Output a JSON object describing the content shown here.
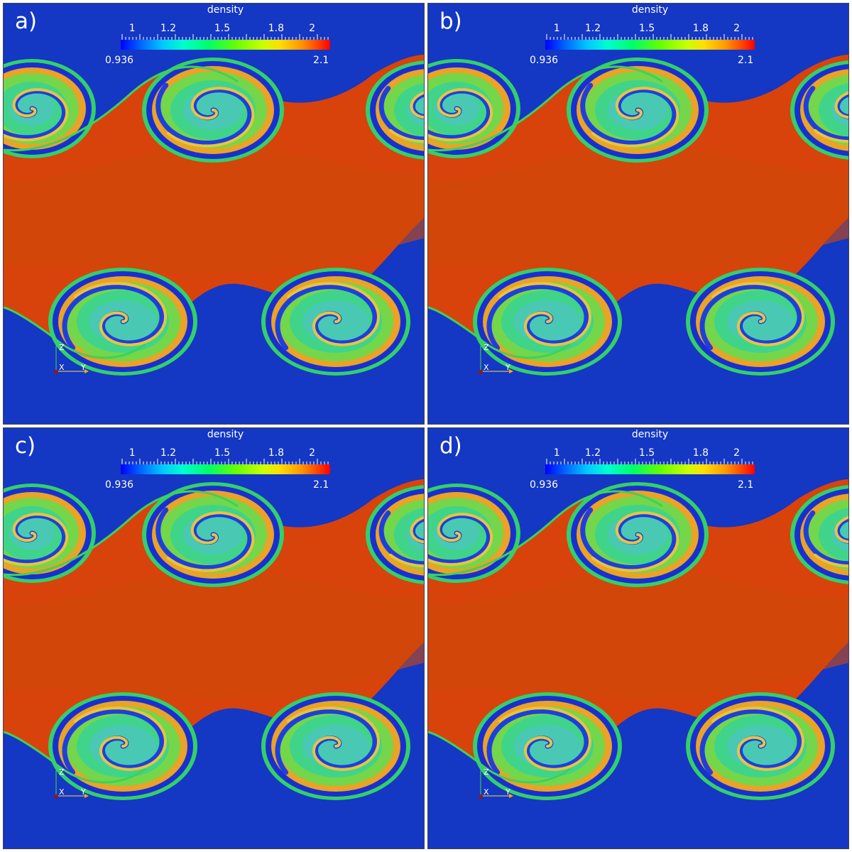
{
  "panels": [
    {
      "id": "a",
      "label": "a)"
    },
    {
      "id": "b",
      "label": "b)"
    },
    {
      "id": "c",
      "label": "c)"
    },
    {
      "id": "d",
      "label": "d)"
    }
  ],
  "colorbar": {
    "title": "density",
    "tick_labels": [
      "1",
      "1.2",
      "1.5",
      "1.8",
      "2"
    ],
    "min_label": "0.936",
    "max_label": "2.1",
    "colormap": "blue-cyan-green-yellow-red (jet)"
  },
  "axes_triad": {
    "labels": [
      "Z",
      "X",
      "Y"
    ]
  },
  "colors": {
    "low_density": "#1437c4",
    "high_density": "#e8420a",
    "vortex_core": "#37d65a"
  }
}
